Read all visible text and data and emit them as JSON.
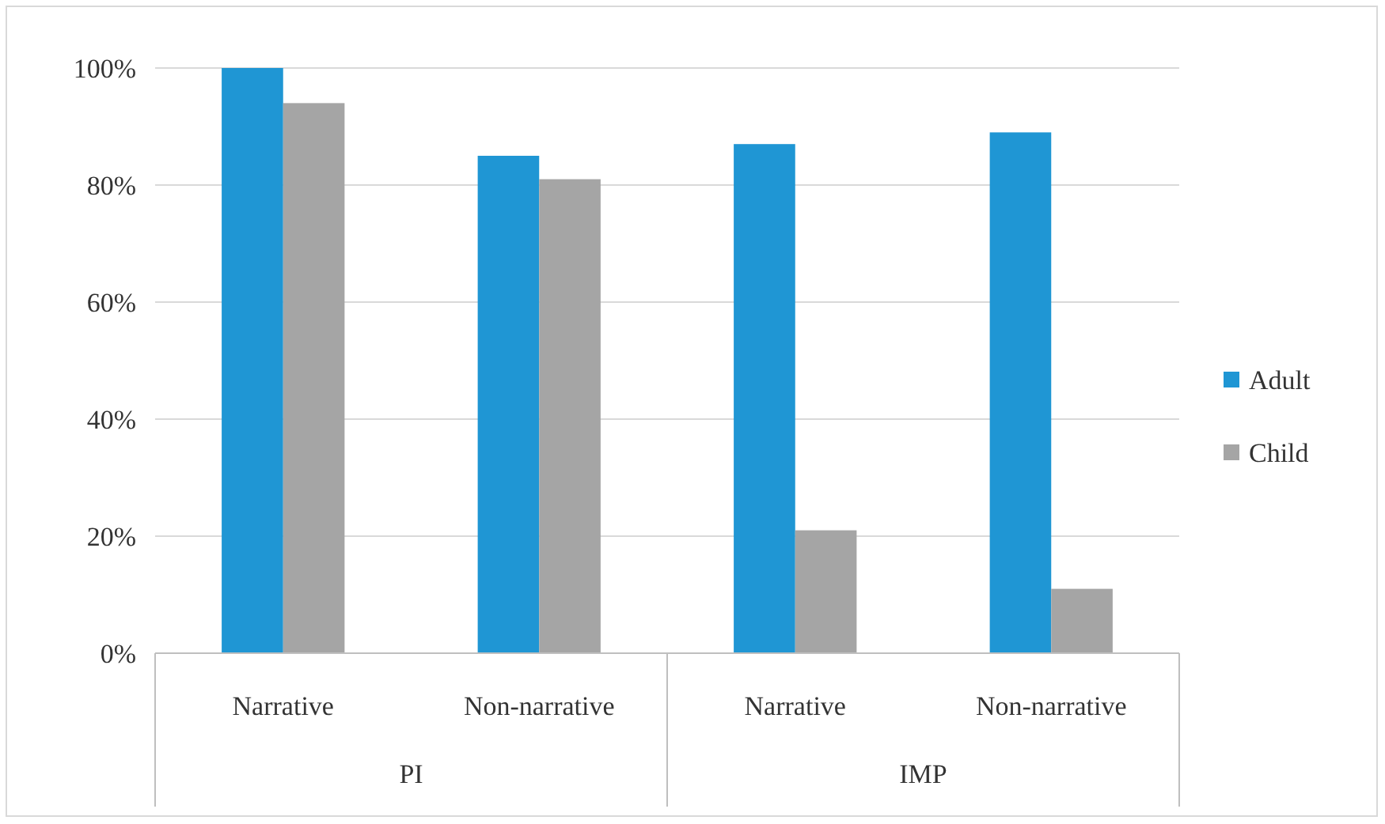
{
  "chart_data": {
    "type": "bar",
    "categories": [
      "Narrative",
      "Non-narrative",
      "Narrative",
      "Non-narrative"
    ],
    "series": [
      {
        "name": "Adult",
        "color": "#1f96d4",
        "values": [
          100,
          85,
          87,
          89
        ]
      },
      {
        "name": "Child",
        "color": "#a5a5a5",
        "values": [
          94,
          81,
          21,
          11
        ]
      }
    ],
    "ylim": [
      0,
      100
    ],
    "yticks": [
      {
        "value": 0,
        "label": "0%"
      },
      {
        "value": 20,
        "label": "20%"
      },
      {
        "value": 40,
        "label": "40%"
      },
      {
        "value": 60,
        "label": "60%"
      },
      {
        "value": 80,
        "label": "80%"
      },
      {
        "value": 100,
        "label": "100%"
      }
    ],
    "annotations": [
      "PI",
      "IMP"
    ],
    "grid": "y",
    "legend": "right"
  }
}
